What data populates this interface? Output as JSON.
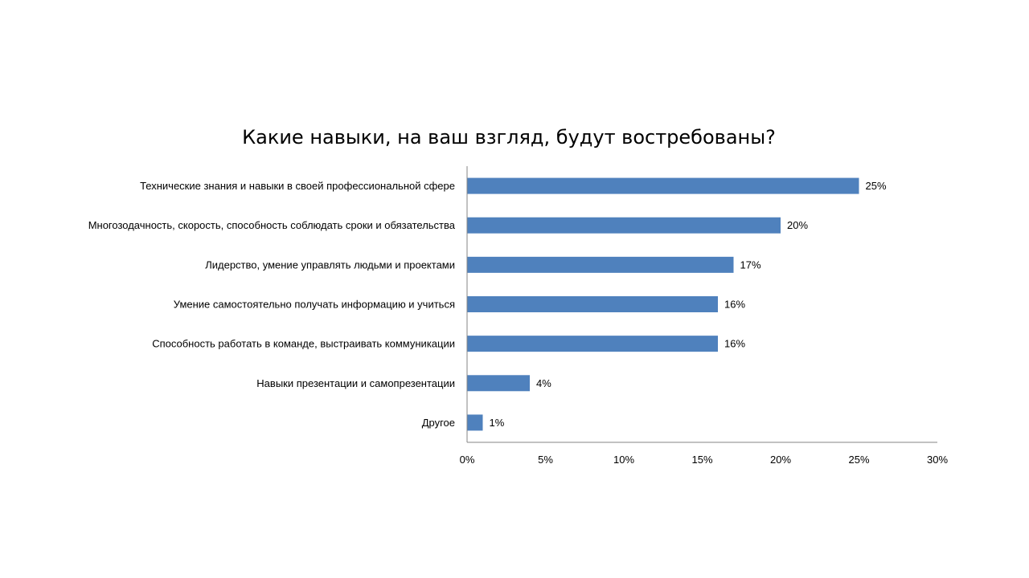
{
  "chart_data": {
    "type": "bar",
    "orientation": "horizontal",
    "title": "Какие навыки, на ваш взгляд, будут востребованы?",
    "categories": [
      "Технические знания и навыки в своей профессиональной сфере",
      "Многозодачность, скорость, способность соблюдать сроки и обязательства",
      "Лидерство, умение управлять людьми и проектами",
      "Умение самостоятельно получать информацию и учиться",
      "Способность работать в команде, выстраивать коммуникации",
      "Навыки презентации и самопрезентации",
      "Другое"
    ],
    "values": [
      25,
      20,
      17,
      16,
      16,
      4,
      1
    ],
    "data_labels": [
      "25%",
      "20%",
      "17%",
      "16%",
      "16%",
      "4%",
      "1%"
    ],
    "xlim": [
      0,
      30
    ],
    "x_ticks": [
      0,
      5,
      10,
      15,
      20,
      25,
      30
    ],
    "x_tick_labels": [
      "0%",
      "5%",
      "10%",
      "15%",
      "20%",
      "25%",
      "30%"
    ],
    "grid": false,
    "legend": "none",
    "bar_color": "#4F81BD",
    "axis_color": "#868686"
  }
}
